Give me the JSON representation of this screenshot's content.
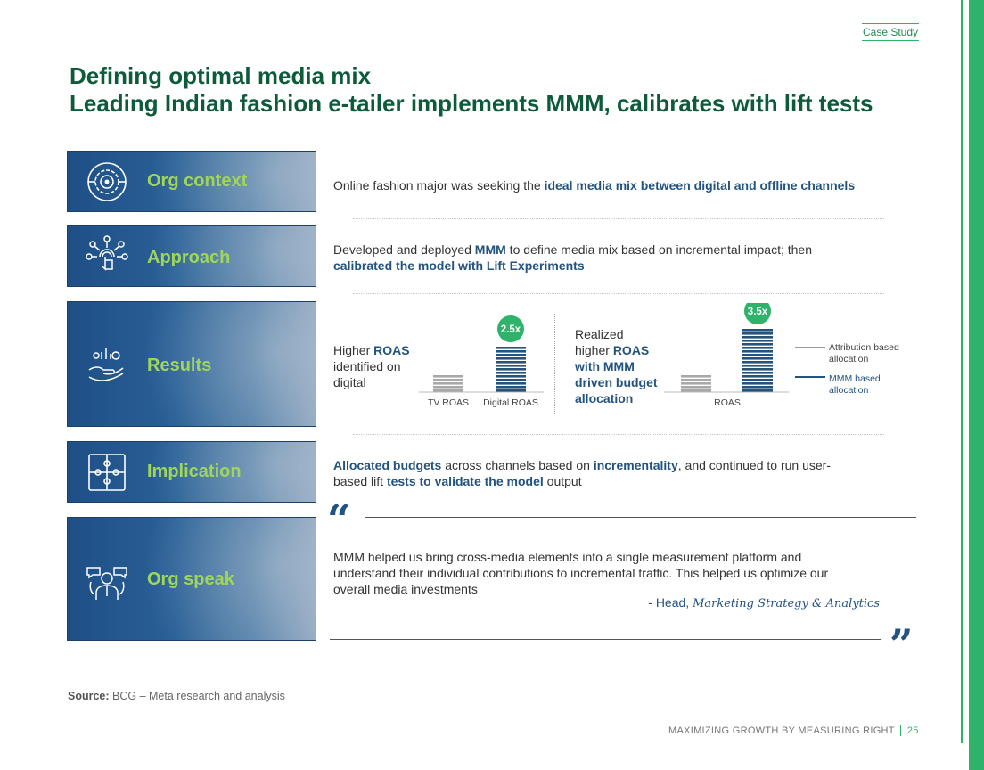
{
  "header": {
    "tag": "Case Study"
  },
  "title": {
    "line1": "Defining optimal media mix",
    "line2": "Leading Indian fashion e-tailer implements MMM, calibrates with lift tests"
  },
  "rows": {
    "org_context": {
      "label": "Org context",
      "text": [
        "Online fashion major was seeking the ",
        "ideal media mix between digital and offline channels"
      ]
    },
    "approach": {
      "label": "Approach",
      "text1": [
        "Developed and deployed ",
        "MMM",
        " to define media mix based on incremental impact; then"
      ],
      "text2": "calibrated the model with Lift Experiments"
    },
    "results": {
      "label": "Results"
    },
    "implication": {
      "label": "Implication",
      "text1": [
        "Allocated budgets",
        " across channels based on ",
        "incrementality",
        ", and continued to run user-"
      ],
      "text2": [
        "based lift ",
        "tests to validate the model",
        " output"
      ]
    },
    "org_speak": {
      "label": "Org speak",
      "quote": [
        "MMM helped us bring cross-media elements into a single measurement platform and",
        "understand their individual contributions to incremental traffic. This helped us optimize our",
        "overall media investments"
      ],
      "attribution_prefix": "- Head, ",
      "attribution_role": "Marketing Strategy & Analytics"
    }
  },
  "chart_data": [
    {
      "type": "bar",
      "caption": [
        "Higher ",
        "ROAS",
        "identified on",
        "digital"
      ],
      "categories": [
        "TV ROAS",
        "Digital ROAS"
      ],
      "values": [
        1,
        2.5
      ],
      "bar_labels": [
        "",
        "2.5x"
      ],
      "colors": [
        "#a8a8a8",
        "#23537f"
      ]
    },
    {
      "type": "bar",
      "caption": [
        "Realized",
        "higher ",
        "ROAS",
        "with MMM",
        "driven budget",
        "allocation"
      ],
      "categories": [
        "ROAS"
      ],
      "series": [
        {
          "name": "Attribution based allocation",
          "values": [
            1
          ],
          "color": "#a8a8a8"
        },
        {
          "name": "MMM based allocation",
          "values": [
            3.5
          ],
          "color": "#23537f"
        }
      ],
      "bar_labels": [
        "",
        "3.5x"
      ],
      "legend": [
        {
          "line1": "Attribution based",
          "line2": "allocation",
          "color": "#999999"
        },
        {
          "line1": "MMM based",
          "line2": "allocation",
          "color": "#23537f"
        }
      ]
    }
  ],
  "badge_color": "#2fb36a",
  "source": {
    "label": "Source:",
    "text": "BCG – Meta research and analysis"
  },
  "footer": {
    "text": "MAXIMIZING GROWTH BY MEASURING RIGHT",
    "page": "25"
  }
}
